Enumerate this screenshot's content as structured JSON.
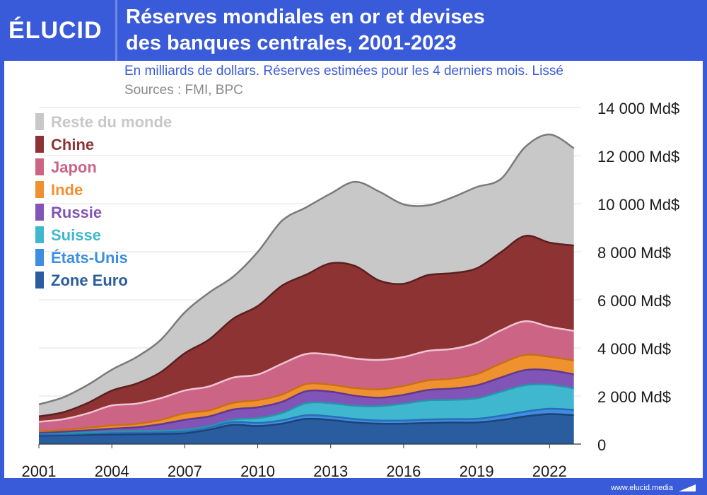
{
  "header": {
    "brand": "ÉLUCID",
    "title_line1": "Réserves mondiales en or et devises",
    "title_line2": "des banques centrales, 2001-2023",
    "subtitle": "En milliards de dollars. Réserves estimées pour les 4 derniers mois. Lissé",
    "sources": "Sources : FMI, BPC"
  },
  "footer": {
    "site": "www.elucid.media"
  },
  "chart_data": {
    "type": "area",
    "stacked": true,
    "x": [
      2001,
      2002,
      2003,
      2004,
      2005,
      2006,
      2007,
      2008,
      2009,
      2010,
      2011,
      2012,
      2013,
      2014,
      2015,
      2016,
      2017,
      2018,
      2019,
      2020,
      2021,
      2022,
      2023
    ],
    "xticks": [
      2001,
      2004,
      2007,
      2010,
      2013,
      2016,
      2019,
      2022
    ],
    "xtick_labels": [
      "2001",
      "2004",
      "2007",
      "2010",
      "2013",
      "2016",
      "2019",
      "2022"
    ],
    "yticks": [
      0,
      2000,
      4000,
      6000,
      8000,
      10000,
      12000,
      14000
    ],
    "ytick_labels": [
      "0",
      "2 000 Md$",
      "4 000 Md$",
      "6 000 Md$",
      "8 000 Md$",
      "10 000 Md$",
      "12 000 Md$",
      "14 000 Md$"
    ],
    "ylim": [
      0,
      14000
    ],
    "xlim": [
      2001,
      2023.2
    ],
    "grid": true,
    "legend_position": "top-left",
    "series": [
      {
        "name": "Zone Euro",
        "color": "#2a5d9f",
        "values": [
          350,
          360,
          380,
          400,
          410,
          420,
          450,
          600,
          800,
          750,
          850,
          1050,
          1000,
          900,
          850,
          850,
          880,
          900,
          900,
          1000,
          1150,
          1250,
          1200
        ]
      },
      {
        "name": "États-Unis",
        "color": "#3d8ee0",
        "values": [
          50,
          55,
          60,
          65,
          70,
          75,
          80,
          90,
          120,
          130,
          140,
          150,
          150,
          140,
          130,
          130,
          140,
          140,
          150,
          180,
          200,
          220,
          220
        ]
      },
      {
        "name": "Suisse",
        "color": "#3fb8cf",
        "values": [
          50,
          50,
          55,
          60,
          60,
          60,
          60,
          60,
          100,
          200,
          300,
          500,
          550,
          550,
          600,
          700,
          800,
          800,
          850,
          1000,
          1100,
          1000,
          900
        ]
      },
      {
        "name": "Russie",
        "color": "#8154b8",
        "values": [
          30,
          50,
          80,
          120,
          160,
          270,
          420,
          400,
          420,
          450,
          470,
          500,
          480,
          420,
          350,
          370,
          430,
          470,
          540,
          590,
          630,
          600,
          580
        ]
      },
      {
        "name": "Inde",
        "color": "#f0912f",
        "values": [
          50,
          70,
          100,
          130,
          140,
          180,
          270,
          250,
          280,
          300,
          300,
          300,
          290,
          320,
          350,
          370,
          400,
          410,
          470,
          580,
          630,
          560,
          580
        ]
      },
      {
        "name": "Japon",
        "color": "#cc6585",
        "values": [
          400,
          450,
          600,
          830,
          840,
          900,
          950,
          1000,
          1050,
          1060,
          1280,
          1250,
          1250,
          1230,
          1220,
          1200,
          1230,
          1240,
          1300,
          1380,
          1400,
          1250,
          1230
        ]
      },
      {
        "name": "Chine",
        "color": "#8e3333",
        "values": [
          220,
          290,
          430,
          620,
          830,
          1080,
          1550,
          1950,
          2450,
          2850,
          3250,
          3300,
          3800,
          3850,
          3300,
          3050,
          3150,
          3150,
          3100,
          3250,
          3550,
          3500,
          3550
        ]
      },
      {
        "name": "Reste du monde",
        "color": "#c8c8c8",
        "values": [
          500,
          620,
          750,
          870,
          1100,
          1340,
          1700,
          1950,
          1750,
          2250,
          2700,
          2800,
          2900,
          3500,
          3700,
          3300,
          2900,
          3150,
          3380,
          3050,
          3700,
          4500,
          4050
        ]
      }
    ]
  }
}
